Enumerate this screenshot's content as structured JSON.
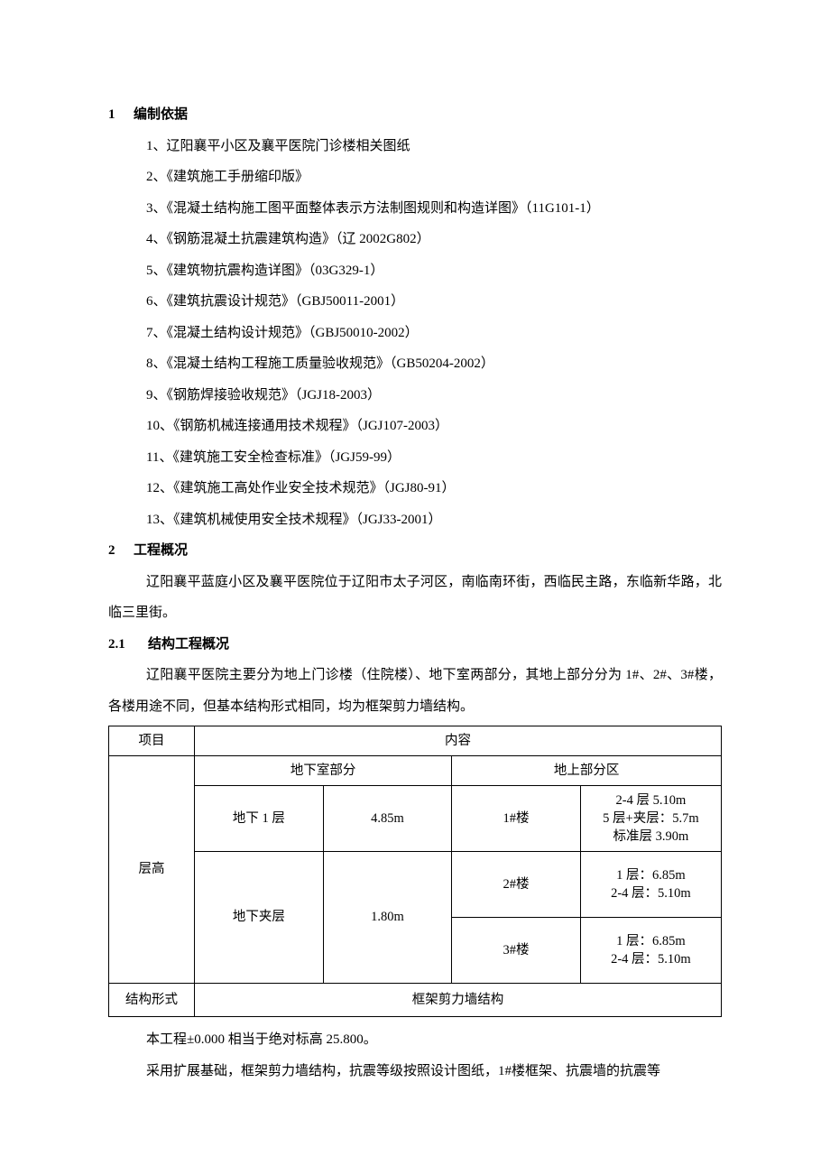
{
  "section1": {
    "num": "1",
    "title": "编制依据",
    "items": [
      "1、辽阳襄平小区及襄平医院门诊楼相关图纸",
      "2、《建筑施工手册缩印版》",
      "3、《混凝土结构施工图平面整体表示方法制图规则和构造详图》（11G101-1）",
      "4、《钢筋混凝土抗震建筑构造》（辽 2002G802）",
      "5、《建筑物抗震构造详图》（03G329-1）",
      "6、《建筑抗震设计规范》（GBJ50011-2001）",
      "7、《混凝土结构设计规范》（GBJ50010-2002）",
      "8、《混凝土结构工程施工质量验收规范》（GB50204-2002）",
      "9、《钢筋焊接验收规范》（JGJ18-2003）",
      "10、《钢筋机械连接通用技术规程》（JGJ107-2003）",
      "11、《建筑施工安全检查标准》（JGJ59-99）",
      "12、《建筑施工高处作业安全技术规范》（JGJ80-91）",
      "13、《建筑机械使用安全技术规程》（JGJ33-2001）"
    ]
  },
  "section2": {
    "num": "2",
    "title": "工程概况",
    "para": "辽阳襄平蓝庭小区及襄平医院位于辽阳市太子河区，南临南环街，西临民主路，东临新华路，北临三里街。"
  },
  "section2_1": {
    "num": "2.1",
    "title": "结构工程概况",
    "para": "辽阳襄平医院主要分为地上门诊楼（住院楼）、地下室两部分，其地上部分分为 1#、2#、3#楼，各楼用途不同，但基本结构形式相同，均为框架剪力墙结构。"
  },
  "table": {
    "col_project": "项目",
    "col_content": "内容",
    "sub_underground": "地下室部分",
    "sub_above": "地上部分区",
    "row_height_label": "层高",
    "ug1_name": "地下 1 层",
    "ug1_val": "4.85m",
    "ug2_name": "地下夹层",
    "ug2_val": "1.80m",
    "b1_name": "1#楼",
    "b1_val": "2-4 层 5.10m\n5 层+夹层：5.7m\n标准层 3.90m",
    "b2_name": "2#楼",
    "b2_val": "1 层：6.85m\n2-4 层：5.10m",
    "b3_name": "3#楼",
    "b3_val": "1 层：6.85m\n2-4 层：5.10m",
    "row_struct_label": "结构形式",
    "row_struct_val": "框架剪力墙结构"
  },
  "tail": {
    "p1": "本工程±0.000 相当于绝对标高 25.800。",
    "p2": "采用扩展基础，框架剪力墙结构，抗震等级按照设计图纸，1#楼框架、抗震墙的抗震等"
  }
}
